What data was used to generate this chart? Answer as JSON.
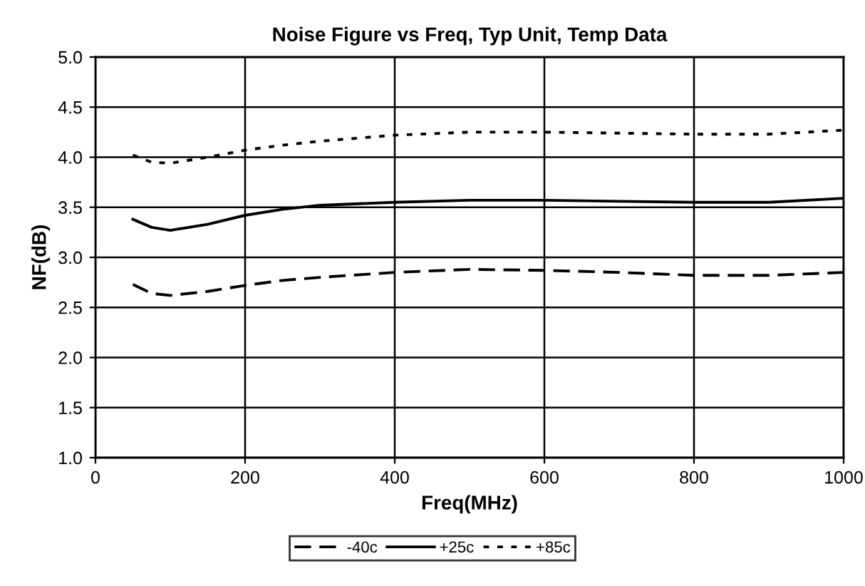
{
  "chart_data": {
    "type": "line",
    "title": "Noise Figure vs Freq, Typ Unit, Temp Data",
    "xlabel": "Freq(MHz)",
    "ylabel": "NF(dB)",
    "x": [
      50,
      75,
      100,
      150,
      200,
      250,
      300,
      400,
      500,
      600,
      700,
      800,
      900,
      1000
    ],
    "series": [
      {
        "name": "-40c",
        "color": "#000000",
        "line_style": "dashed",
        "values": [
          2.73,
          2.64,
          2.62,
          2.66,
          2.72,
          2.77,
          2.8,
          2.85,
          2.88,
          2.87,
          2.85,
          2.82,
          2.82,
          2.85
        ]
      },
      {
        "name": "+25c",
        "color": "#000000",
        "line_style": "solid",
        "values": [
          3.38,
          3.3,
          3.27,
          3.33,
          3.42,
          3.48,
          3.52,
          3.55,
          3.57,
          3.57,
          3.56,
          3.55,
          3.55,
          3.59
        ]
      },
      {
        "name": "+85c",
        "color": "#000000",
        "line_style": "dotted",
        "values": [
          4.02,
          3.95,
          3.94,
          4.0,
          4.07,
          4.12,
          4.16,
          4.22,
          4.25,
          4.25,
          4.24,
          4.23,
          4.23,
          4.27
        ]
      }
    ],
    "xlim": [
      0,
      1000
    ],
    "xticks": [
      0,
      200,
      400,
      600,
      800,
      1000
    ],
    "ylim": [
      1.0,
      5.0
    ],
    "yticks": [
      {
        "value": 1.0,
        "label": "1.0"
      },
      {
        "value": 1.5,
        "label": "1.5"
      },
      {
        "value": 2.0,
        "label": "2.0"
      },
      {
        "value": 2.5,
        "label": "2.5"
      },
      {
        "value": 3.0,
        "label": "3.0"
      },
      {
        "value": 3.5,
        "label": "3.5"
      },
      {
        "value": 4.0,
        "label": "4.0"
      },
      {
        "value": 4.5,
        "label": "4.5"
      },
      {
        "value": 5.0,
        "label": "5.0"
      }
    ],
    "grid": true,
    "legend": "bottom",
    "marker": "none"
  }
}
